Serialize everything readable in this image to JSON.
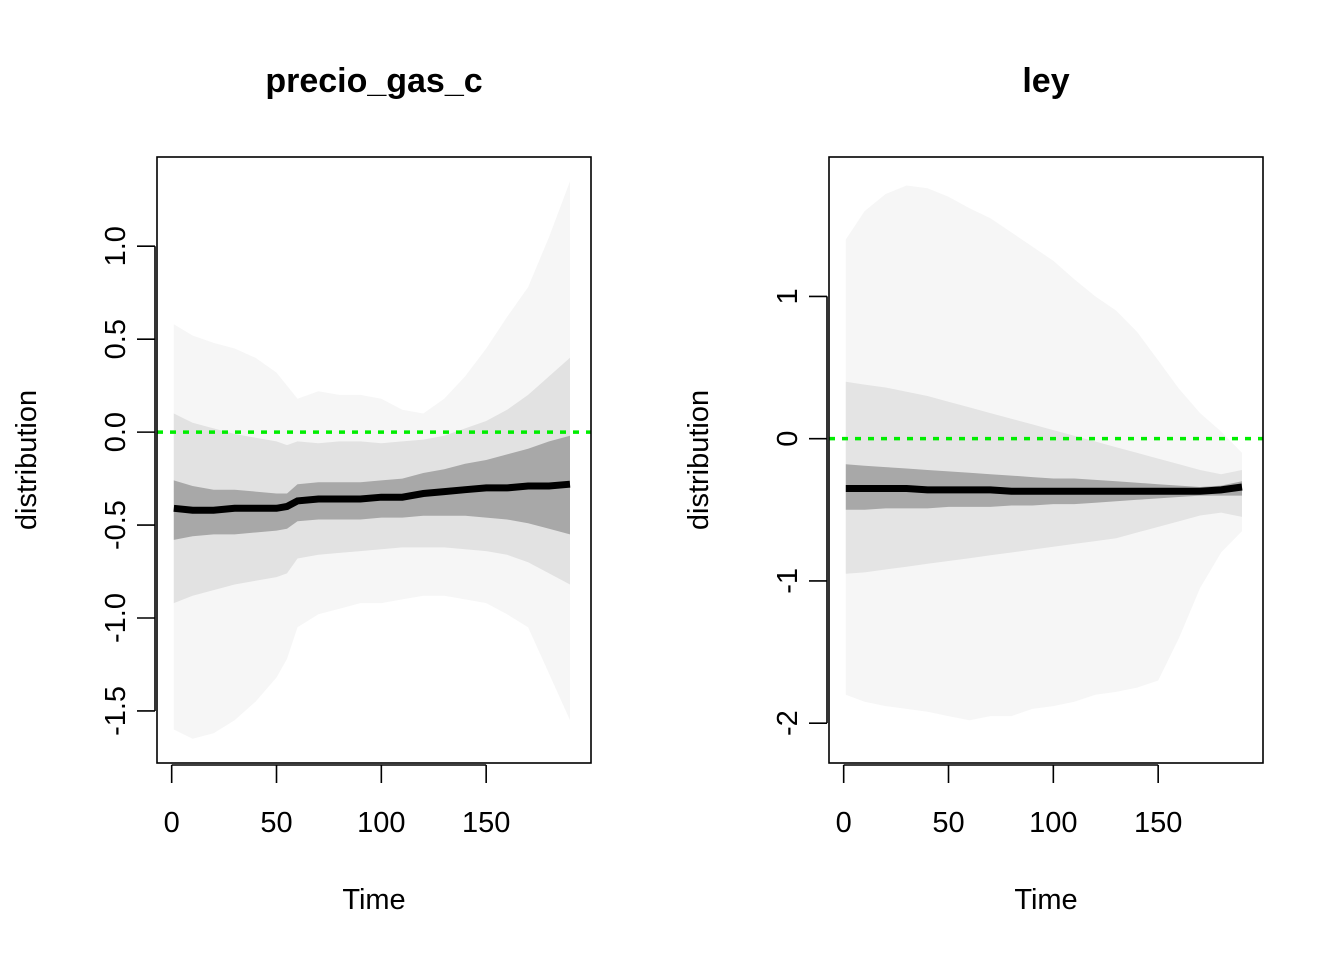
{
  "colors": {
    "median": "#000000",
    "zero_line": "#00ee00",
    "band_light": "#f5f5f5"
  },
  "chart_data": [
    {
      "type": "area",
      "title": "precio_gas_c",
      "xlabel": "Time",
      "ylabel": "distribution",
      "xlim": [
        -7,
        200
      ],
      "ylim": [
        -1.78,
        1.48
      ],
      "xticks": [
        0,
        50,
        100,
        150
      ],
      "xtick_labels": [
        "0",
        "50",
        "100",
        "150"
      ],
      "yticks": [
        -1.5,
        -1.0,
        -0.5,
        0.0,
        0.5,
        1.0
      ],
      "ytick_labels": [
        "-1.5",
        "-1.0",
        "-0.5",
        "0.0",
        "0.5",
        "1.0"
      ],
      "reference_line": {
        "y": 0,
        "style": "dotted",
        "color": "#00ee00"
      },
      "x": [
        1,
        10,
        20,
        30,
        40,
        50,
        55,
        60,
        70,
        80,
        90,
        100,
        110,
        120,
        130,
        140,
        150,
        160,
        170,
        180,
        190
      ],
      "series": [
        {
          "name": "median",
          "values": [
            -0.41,
            -0.42,
            -0.42,
            -0.41,
            -0.41,
            -0.41,
            -0.4,
            -0.37,
            -0.36,
            -0.36,
            -0.36,
            -0.35,
            -0.35,
            -0.33,
            -0.32,
            -0.31,
            -0.3,
            -0.3,
            -0.29,
            -0.29,
            -0.28
          ]
        },
        {
          "name": "inner_lower",
          "values": [
            -0.58,
            -0.56,
            -0.55,
            -0.55,
            -0.54,
            -0.53,
            -0.52,
            -0.48,
            -0.47,
            -0.47,
            -0.47,
            -0.46,
            -0.46,
            -0.45,
            -0.45,
            -0.45,
            -0.46,
            -0.47,
            -0.49,
            -0.52,
            -0.55
          ]
        },
        {
          "name": "inner_upper",
          "values": [
            -0.26,
            -0.29,
            -0.31,
            -0.31,
            -0.32,
            -0.33,
            -0.33,
            -0.28,
            -0.27,
            -0.27,
            -0.27,
            -0.26,
            -0.25,
            -0.22,
            -0.2,
            -0.17,
            -0.15,
            -0.12,
            -0.09,
            -0.05,
            -0.02
          ]
        },
        {
          "name": "mid_lower",
          "values": [
            -0.92,
            -0.88,
            -0.85,
            -0.82,
            -0.8,
            -0.78,
            -0.76,
            -0.68,
            -0.66,
            -0.65,
            -0.64,
            -0.63,
            -0.62,
            -0.62,
            -0.62,
            -0.63,
            -0.64,
            -0.66,
            -0.7,
            -0.76,
            -0.82
          ]
        },
        {
          "name": "mid_upper",
          "values": [
            0.1,
            0.05,
            0.02,
            -0.01,
            -0.03,
            -0.05,
            -0.07,
            -0.05,
            -0.06,
            -0.05,
            -0.05,
            -0.06,
            -0.05,
            -0.04,
            -0.02,
            0.02,
            0.06,
            0.12,
            0.2,
            0.3,
            0.4
          ]
        },
        {
          "name": "outer_lower",
          "values": [
            -1.6,
            -1.65,
            -1.62,
            -1.55,
            -1.45,
            -1.32,
            -1.22,
            -1.05,
            -0.98,
            -0.95,
            -0.92,
            -0.92,
            -0.9,
            -0.88,
            -0.88,
            -0.9,
            -0.92,
            -0.98,
            -1.05,
            -1.3,
            -1.55
          ]
        },
        {
          "name": "outer_upper",
          "values": [
            0.58,
            0.52,
            0.48,
            0.45,
            0.4,
            0.32,
            0.25,
            0.18,
            0.22,
            0.2,
            0.2,
            0.18,
            0.12,
            0.1,
            0.18,
            0.3,
            0.45,
            0.62,
            0.78,
            1.05,
            1.35
          ]
        }
      ]
    },
    {
      "type": "area",
      "title": "ley",
      "xlabel": "Time",
      "ylabel": "distribution",
      "xlim": [
        -7,
        200
      ],
      "ylim": [
        -2.28,
        1.98
      ],
      "xticks": [
        0,
        50,
        100,
        150
      ],
      "xtick_labels": [
        "0",
        "50",
        "100",
        "150"
      ],
      "yticks": [
        -2,
        -1,
        0,
        1
      ],
      "ytick_labels": [
        "-2",
        "-1",
        "0",
        "1"
      ],
      "reference_line": {
        "y": 0,
        "style": "dotted",
        "color": "#00ee00"
      },
      "x": [
        1,
        10,
        20,
        30,
        40,
        50,
        60,
        70,
        80,
        90,
        100,
        110,
        120,
        130,
        140,
        150,
        160,
        170,
        180,
        190
      ],
      "series": [
        {
          "name": "median",
          "values": [
            -0.35,
            -0.35,
            -0.35,
            -0.35,
            -0.36,
            -0.36,
            -0.36,
            -0.36,
            -0.37,
            -0.37,
            -0.37,
            -0.37,
            -0.37,
            -0.37,
            -0.37,
            -0.37,
            -0.37,
            -0.37,
            -0.36,
            -0.34
          ]
        },
        {
          "name": "inner_lower",
          "values": [
            -0.5,
            -0.5,
            -0.49,
            -0.49,
            -0.49,
            -0.48,
            -0.48,
            -0.48,
            -0.47,
            -0.47,
            -0.46,
            -0.46,
            -0.45,
            -0.44,
            -0.43,
            -0.42,
            -0.41,
            -0.4,
            -0.4,
            -0.4
          ]
        },
        {
          "name": "inner_upper",
          "values": [
            -0.18,
            -0.19,
            -0.2,
            -0.21,
            -0.22,
            -0.23,
            -0.24,
            -0.25,
            -0.26,
            -0.27,
            -0.28,
            -0.28,
            -0.29,
            -0.3,
            -0.31,
            -0.32,
            -0.33,
            -0.34,
            -0.33,
            -0.3
          ]
        },
        {
          "name": "mid_lower",
          "values": [
            -0.95,
            -0.94,
            -0.92,
            -0.9,
            -0.88,
            -0.86,
            -0.84,
            -0.82,
            -0.8,
            -0.78,
            -0.76,
            -0.74,
            -0.72,
            -0.7,
            -0.66,
            -0.62,
            -0.58,
            -0.54,
            -0.52,
            -0.55
          ]
        },
        {
          "name": "mid_upper",
          "values": [
            0.4,
            0.38,
            0.36,
            0.33,
            0.3,
            0.26,
            0.22,
            0.18,
            0.14,
            0.1,
            0.06,
            0.02,
            -0.02,
            -0.06,
            -0.1,
            -0.14,
            -0.18,
            -0.22,
            -0.25,
            -0.22
          ]
        },
        {
          "name": "outer_lower",
          "values": [
            -1.8,
            -1.85,
            -1.88,
            -1.9,
            -1.92,
            -1.95,
            -1.98,
            -1.95,
            -1.95,
            -1.9,
            -1.88,
            -1.85,
            -1.8,
            -1.78,
            -1.75,
            -1.7,
            -1.4,
            -1.05,
            -0.8,
            -0.65
          ]
        },
        {
          "name": "outer_upper",
          "values": [
            1.4,
            1.6,
            1.72,
            1.78,
            1.76,
            1.7,
            1.62,
            1.55,
            1.45,
            1.35,
            1.25,
            1.12,
            1.0,
            0.9,
            0.75,
            0.55,
            0.35,
            0.18,
            0.05,
            -0.1
          ]
        }
      ]
    }
  ]
}
